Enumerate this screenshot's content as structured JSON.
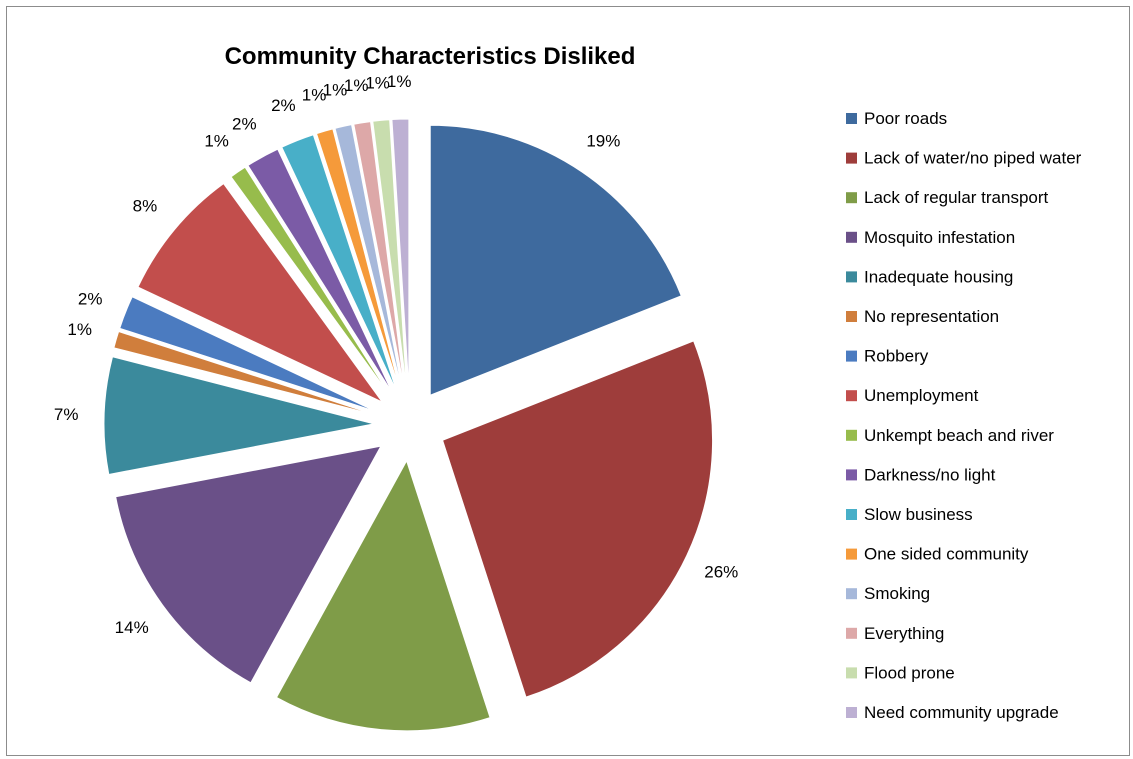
{
  "chart_data": {
    "type": "pie",
    "title": "Community Characteristics Disliked",
    "legend_position": "right",
    "exploded": true,
    "slices": [
      {
        "label": "Poor roads",
        "value": 19,
        "display": "19%",
        "color": "#3E6A9E"
      },
      {
        "label": "Lack of water/no piped water",
        "value": 26,
        "display": "26%",
        "color": "#9E3D3B"
      },
      {
        "label": "Lack of regular transport",
        "value": 13,
        "display": "13%",
        "color": "#7F9C48"
      },
      {
        "label": "Mosquito infestation",
        "value": 14,
        "display": "14%",
        "color": "#6A5088"
      },
      {
        "label": "Inadequate housing",
        "value": 7,
        "display": "7%",
        "color": "#3B8A9C"
      },
      {
        "label": "No representation",
        "value": 1,
        "display": "1%",
        "color": "#D07E3C"
      },
      {
        "label": "Robbery",
        "value": 2,
        "display": "2%",
        "color": "#4B7BC0"
      },
      {
        "label": "Unemployment",
        "value": 8,
        "display": "8%",
        "color": "#C24E4C"
      },
      {
        "label": "Unkempt beach and river",
        "value": 1,
        "display": "1%",
        "color": "#97BC4C"
      },
      {
        "label": "Darkness/no light",
        "value": 2,
        "display": "2%",
        "color": "#7B5BA6"
      },
      {
        "label": "Slow business",
        "value": 2,
        "display": "2%",
        "color": "#48AFC8"
      },
      {
        "label": "One sided community",
        "value": 1,
        "display": "1%",
        "color": "#F59A3A"
      },
      {
        "label": "Smoking",
        "value": 1,
        "display": "1%",
        "color": "#A6B8DA"
      },
      {
        "label": "Everything",
        "value": 1,
        "display": "1%",
        "color": "#DDA8A8"
      },
      {
        "label": "Flood prone",
        "value": 1,
        "display": "1%",
        "color": "#C8DDAE"
      },
      {
        "label": "Need community upgrade",
        "value": 1,
        "display": "1%",
        "color": "#BDB0D3"
      }
    ]
  }
}
